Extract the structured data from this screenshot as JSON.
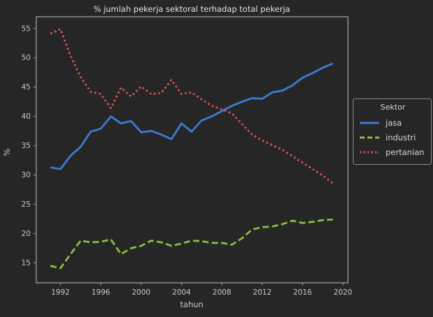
{
  "figure": {
    "background": "#262626",
    "spine_color": "#a8a8a8",
    "tick_color": "#8f8f8f",
    "text_color": "#c9c9c9",
    "title_color": "#e2e2e2"
  },
  "legend": {
    "title": "Sektor"
  },
  "chart_data": {
    "type": "line",
    "title": "% jumlah pekerja sektoral terhadap total pekerja",
    "xlabel": "tahun",
    "ylabel": "%",
    "legend_title": "Sektor",
    "legend_position": "right-outside",
    "grid": false,
    "xlim": [
      1989.6,
      2020.5
    ],
    "ylim": [
      11.6,
      57.0
    ],
    "x_ticks": [
      1992,
      1996,
      2000,
      2004,
      2008,
      2012,
      2016,
      2020
    ],
    "y_ticks": [
      15,
      20,
      25,
      30,
      35,
      40,
      45,
      50,
      55
    ],
    "x": [
      1991,
      1992,
      1993,
      1994,
      1995,
      1996,
      1997,
      1998,
      1999,
      2000,
      2001,
      2002,
      2003,
      2004,
      2005,
      2006,
      2007,
      2008,
      2009,
      2010,
      2011,
      2012,
      2013,
      2014,
      2015,
      2016,
      2017,
      2018,
      2019
    ],
    "series": [
      {
        "name": "jasa",
        "color": "#3c7bd4",
        "style": "solid",
        "values": [
          31.3,
          31.0,
          33.3,
          34.8,
          37.4,
          37.9,
          40.0,
          38.8,
          39.2,
          37.3,
          37.5,
          36.9,
          36.1,
          38.8,
          37.4,
          39.3,
          40.0,
          40.9,
          41.8,
          42.5,
          43.1,
          43.0,
          44.1,
          44.4,
          45.3,
          46.6,
          47.4,
          48.3,
          49.0
        ]
      },
      {
        "name": "industri",
        "color": "#8abe41",
        "style": "dashed",
        "values": [
          14.5,
          14.1,
          16.5,
          18.8,
          18.5,
          18.6,
          19.0,
          16.5,
          17.5,
          17.9,
          18.8,
          18.5,
          17.9,
          18.3,
          18.8,
          18.7,
          18.4,
          18.4,
          18.1,
          19.2,
          20.7,
          21.1,
          21.2,
          21.6,
          22.2,
          21.8,
          22.0,
          22.3,
          22.4
        ]
      },
      {
        "name": "pertanian",
        "color": "#d25252",
        "style": "dotted",
        "values": [
          54.1,
          54.9,
          50.3,
          46.7,
          44.2,
          43.8,
          41.4,
          44.9,
          43.4,
          45.1,
          43.8,
          44.0,
          46.2,
          43.8,
          44.1,
          42.9,
          41.8,
          41.2,
          40.5,
          38.7,
          36.9,
          35.9,
          35.1,
          34.3,
          33.2,
          32.1,
          31.0,
          29.9,
          28.6
        ]
      }
    ]
  }
}
